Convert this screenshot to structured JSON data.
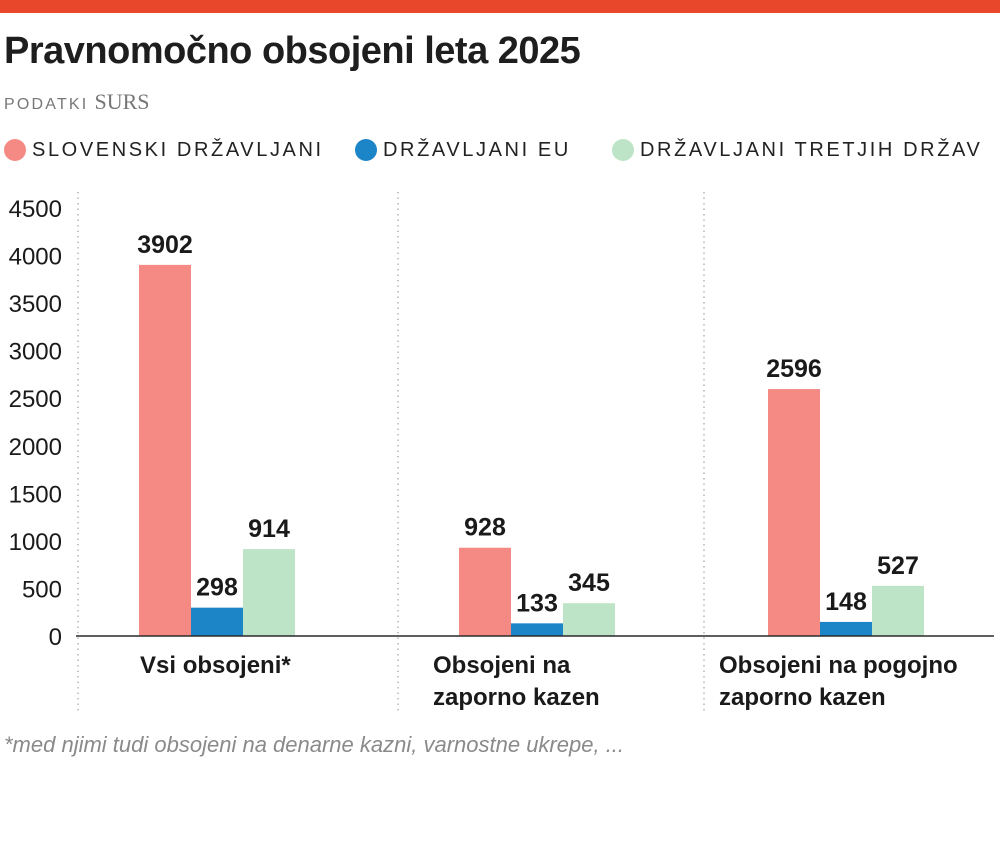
{
  "title": "Pravnomočno obsojeni leta 2025",
  "source": {
    "label": "PODATKI",
    "name": "SURS"
  },
  "colors": {
    "accent": "#e8472b",
    "slovenian": "#f48a83",
    "eu": "#1b85c8",
    "third": "#bde4c6"
  },
  "legend": [
    {
      "label": "SLOVENSKI DRŽAVLJANI",
      "color": "#f48a83"
    },
    {
      "label": "DRŽAVLJANI EU",
      "color": "#1b85c8"
    },
    {
      "label": "DRŽAVLJANI TRETJIH DRŽAV",
      "color": "#bde4c6"
    }
  ],
  "footnote": "*med njimi tudi obsojeni na denarne kazni, varnostne ukrepe, ...",
  "chart_data": {
    "type": "bar",
    "categories": [
      [
        "Vsi obsojeni*"
      ],
      [
        "Obsojeni na",
        "zaporno kazen"
      ],
      [
        "Obsojeni na pogojno",
        "zaporno kazen"
      ]
    ],
    "series": [
      {
        "name": "SLOVENSKI DRŽAVLJANI",
        "color": "#f48a83",
        "values": [
          3902,
          928,
          2596
        ]
      },
      {
        "name": "DRŽAVLJANI EU",
        "color": "#1b85c8",
        "values": [
          298,
          133,
          148
        ]
      },
      {
        "name": "DRŽAVLJANI TRETJIH DRŽAV",
        "color": "#bde4c6",
        "values": [
          914,
          345,
          527
        ]
      }
    ],
    "ylim": [
      0,
      4500
    ],
    "yticks": [
      0,
      500,
      1000,
      1500,
      2000,
      2500,
      3000,
      3500,
      4000,
      4500
    ],
    "data_labels": true,
    "legend_position": "top",
    "grid": "vertical dotted separators"
  }
}
